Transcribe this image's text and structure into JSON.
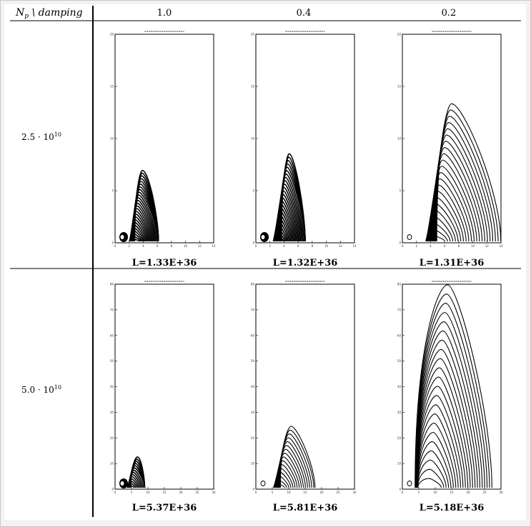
{
  "table": {
    "header_row_label": "N",
    "header_row_sub": "p",
    "header_row_rest": " \\ damping",
    "columns": [
      "1.0",
      "0.4",
      "0.2"
    ],
    "rows": [
      {
        "label_main": "2.5 · 10",
        "label_exp": "10"
      },
      {
        "label_main": "5.0 · 10",
        "label_exp": "10"
      }
    ]
  },
  "panels": [
    {
      "row": 0,
      "col": 0,
      "luminosity": "L=1.33E+36",
      "x_ticks": [
        "0",
        "2",
        "4",
        "6",
        "8",
        "10",
        "12",
        "14"
      ],
      "y_ticks": [
        "0",
        "5",
        "10",
        "15",
        "20"
      ]
    },
    {
      "row": 0,
      "col": 1,
      "luminosity": "L=1.32E+36",
      "x_ticks": [
        "0",
        "2",
        "4",
        "6",
        "8",
        "10",
        "12",
        "14"
      ],
      "y_ticks": [
        "0",
        "5",
        "10",
        "15",
        "20"
      ]
    },
    {
      "row": 0,
      "col": 2,
      "luminosity": "L=1.31E+36",
      "x_ticks": [
        "0",
        "2",
        "4",
        "6",
        "8",
        "10",
        "12",
        "14"
      ],
      "y_ticks": [
        "0",
        "5",
        "10",
        "15",
        "20"
      ]
    },
    {
      "row": 1,
      "col": 0,
      "luminosity": "L=5.37E+36",
      "x_ticks": [
        "0",
        "5",
        "10",
        "15",
        "20",
        "25",
        "30"
      ],
      "y_ticks": [
        "0",
        "10",
        "20",
        "30",
        "40",
        "50",
        "60",
        "70",
        "80"
      ]
    },
    {
      "row": 1,
      "col": 1,
      "luminosity": "L=5.81E+36",
      "x_ticks": [
        "0",
        "5",
        "10",
        "15",
        "20",
        "25",
        "30"
      ],
      "y_ticks": [
        "0",
        "10",
        "20",
        "30",
        "40",
        "50",
        "60",
        "70",
        "80"
      ]
    },
    {
      "row": 1,
      "col": 2,
      "luminosity": "L=5.18E+36",
      "x_ticks": [
        "0",
        "5",
        "10",
        "15",
        "20",
        "25",
        "30"
      ],
      "y_ticks": [
        "0",
        "10",
        "20",
        "30",
        "40",
        "50",
        "60",
        "70",
        "80"
      ]
    }
  ]
}
